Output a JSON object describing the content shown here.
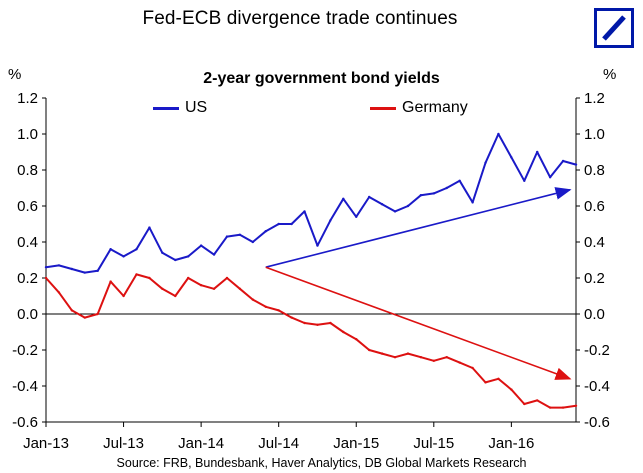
{
  "header": {
    "title": "Fed-ECB divergence trade continues",
    "logo": "deutsche-bank-logo"
  },
  "colors": {
    "us": "#1a1ac8",
    "germany": "#dd1111",
    "logo": "#0018a8"
  },
  "chart_data": {
    "type": "line",
    "title": "2-year government bond yields",
    "ylabel_left": "%",
    "ylabel_right": "%",
    "ylim": [
      -0.6,
      1.2
    ],
    "yticks": [
      "1.2",
      "1.0",
      "0.8",
      "0.6",
      "0.4",
      "0.2",
      "0.0",
      "-0.2",
      "-0.4",
      "-0.6"
    ],
    "xticks": [
      "Jan-13",
      "Jul-13",
      "Jan-14",
      "Jul-14",
      "Jan-15",
      "Jul-15",
      "Jan-16"
    ],
    "x_range": [
      "Jan-13",
      "Jun-16"
    ],
    "legend_position": "top",
    "grid": false,
    "series": [
      {
        "name": "US",
        "color": "#1a1ac8",
        "x": [
          "Jan-13",
          "Feb-13",
          "Mar-13",
          "Apr-13",
          "May-13",
          "Jun-13",
          "Jul-13",
          "Aug-13",
          "Sep-13",
          "Oct-13",
          "Nov-13",
          "Dec-13",
          "Jan-14",
          "Feb-14",
          "Mar-14",
          "Apr-14",
          "May-14",
          "Jun-14",
          "Jul-14",
          "Aug-14",
          "Sep-14",
          "Oct-14",
          "Nov-14",
          "Dec-14",
          "Jan-15",
          "Feb-15",
          "Mar-15",
          "Apr-15",
          "May-15",
          "Jun-15",
          "Jul-15",
          "Aug-15",
          "Sep-15",
          "Oct-15",
          "Nov-15",
          "Dec-15",
          "Jan-16",
          "Feb-16",
          "Mar-16",
          "Apr-16",
          "May-16",
          "Jun-16"
        ],
        "values": [
          0.26,
          0.27,
          0.25,
          0.23,
          0.24,
          0.36,
          0.32,
          0.36,
          0.48,
          0.34,
          0.3,
          0.32,
          0.38,
          0.33,
          0.43,
          0.44,
          0.4,
          0.46,
          0.5,
          0.5,
          0.57,
          0.38,
          0.52,
          0.64,
          0.54,
          0.65,
          0.61,
          0.57,
          0.6,
          0.66,
          0.67,
          0.7,
          0.74,
          0.62,
          0.84,
          1.0,
          0.87,
          0.74,
          0.9,
          0.76,
          0.85,
          0.83
        ]
      },
      {
        "name": "Germany",
        "color": "#dd1111",
        "x": [
          "Jan-13",
          "Feb-13",
          "Mar-13",
          "Apr-13",
          "May-13",
          "Jun-13",
          "Jul-13",
          "Aug-13",
          "Sep-13",
          "Oct-13",
          "Nov-13",
          "Dec-13",
          "Jan-14",
          "Feb-14",
          "Mar-14",
          "Apr-14",
          "May-14",
          "Jun-14",
          "Jul-14",
          "Aug-14",
          "Sep-14",
          "Oct-14",
          "Nov-14",
          "Dec-14",
          "Jan-15",
          "Feb-15",
          "Mar-15",
          "Apr-15",
          "May-15",
          "Jun-15",
          "Jul-15",
          "Aug-15",
          "Sep-15",
          "Oct-15",
          "Nov-15",
          "Dec-15",
          "Jan-16",
          "Feb-16",
          "Mar-16",
          "Apr-16",
          "May-16",
          "Jun-16"
        ],
        "values": [
          0.2,
          0.12,
          0.02,
          -0.02,
          0.0,
          0.18,
          0.1,
          0.22,
          0.2,
          0.14,
          0.1,
          0.2,
          0.16,
          0.14,
          0.2,
          0.14,
          0.08,
          0.04,
          0.02,
          -0.02,
          -0.05,
          -0.06,
          -0.05,
          -0.1,
          -0.14,
          -0.2,
          -0.22,
          -0.24,
          -0.22,
          -0.24,
          -0.26,
          -0.24,
          -0.27,
          -0.3,
          -0.38,
          -0.36,
          -0.42,
          -0.5,
          -0.48,
          -0.52,
          -0.52,
          -0.51
        ]
      }
    ],
    "annotations": [
      {
        "type": "arrow",
        "color": "#1a1ac8",
        "from": [
          "Jun-14",
          0.26
        ],
        "to": [
          "Jun-16",
          0.69
        ]
      },
      {
        "type": "arrow",
        "color": "#dd1111",
        "from": [
          "Jun-14",
          0.26
        ],
        "to": [
          "Jun-16",
          -0.36
        ]
      }
    ]
  },
  "footer": {
    "source": "Source: FRB, Bundesbank, Haver Analytics, DB Global Markets Research"
  }
}
